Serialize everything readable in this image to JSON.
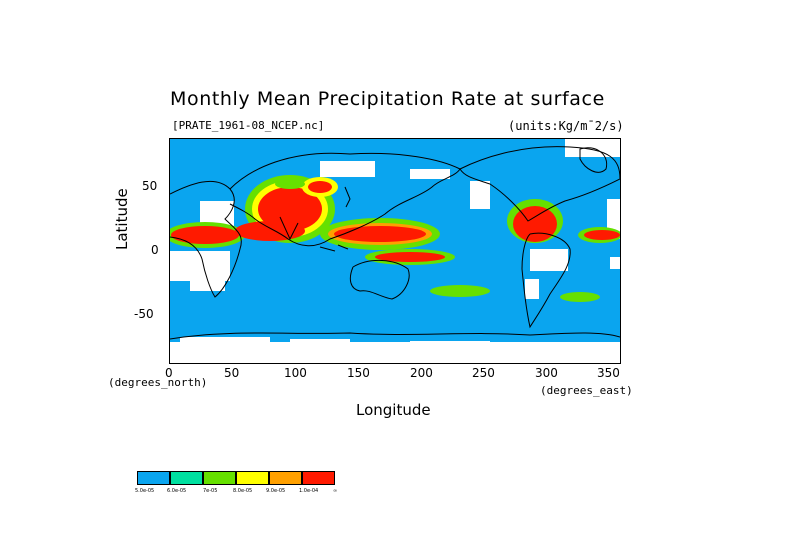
{
  "title": "Monthly Mean Precipitation Rate at surface",
  "subtitle_left": "[PRATE_1961-08_NCEP.nc]",
  "subtitle_right": "(units:Kg/m¯2/s)",
  "y_axis": {
    "label": "Latitude",
    "ticks": [
      "50",
      "0",
      "-50"
    ],
    "unit": "(degrees_north)"
  },
  "x_axis": {
    "label": "Longitude",
    "ticks": [
      "0",
      "50",
      "100",
      "150",
      "200",
      "250",
      "300",
      "350"
    ],
    "unit": "(degrees_east)"
  },
  "colorbar": {
    "colors": [
      "#0aa5ef",
      "#00e0a0",
      "#66e000",
      "#ffff00",
      "#ffa000",
      "#ff1a00"
    ],
    "labels": [
      "5.0e-05",
      "6.0e-05",
      "7e-05",
      "8.0e-05",
      "9.0e-05",
      "1.0e-04",
      "∞"
    ]
  }
}
